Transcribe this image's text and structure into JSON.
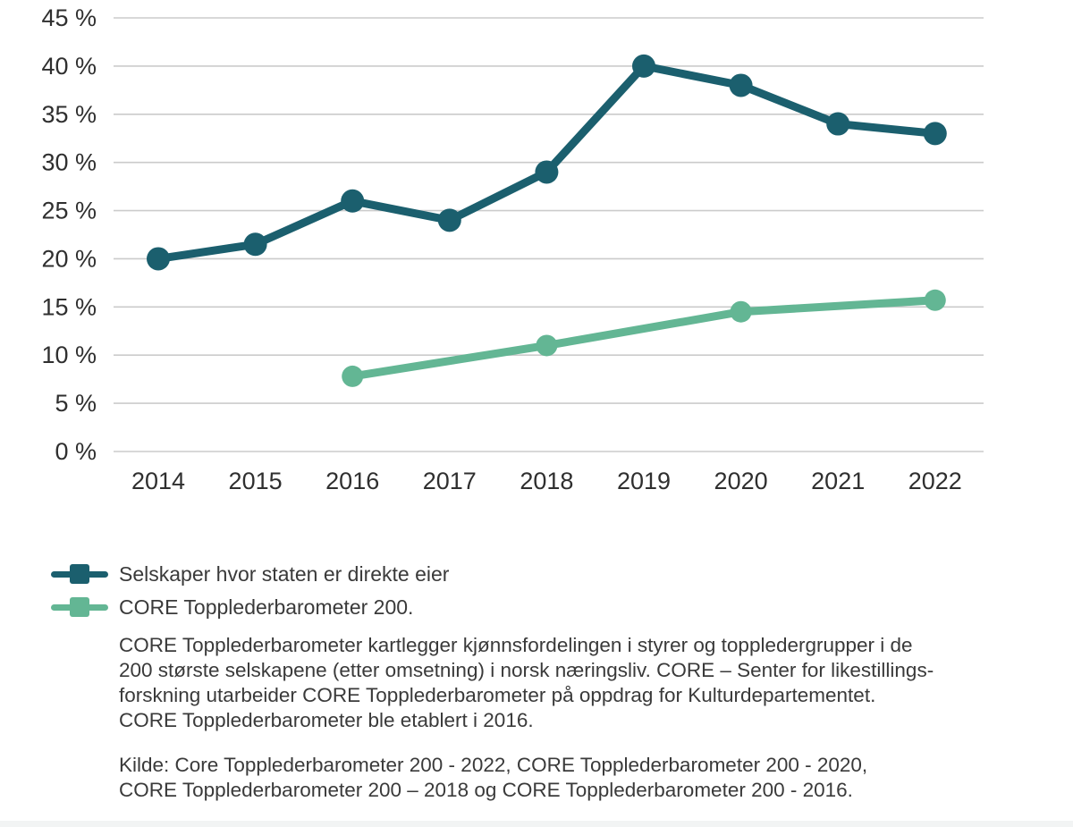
{
  "chart_data": {
    "type": "line",
    "x": [
      2014,
      2015,
      2016,
      2017,
      2018,
      2019,
      2020,
      2021,
      2022
    ],
    "series": [
      {
        "name": "Selskaper hvor staten er direkte eier",
        "color": "#1b5f6e",
        "values": [
          20,
          21.5,
          26,
          24,
          29,
          40,
          38,
          34,
          33
        ]
      },
      {
        "name": "CORE Topplederbarometer 200.",
        "color": "#63b694",
        "values": [
          null,
          null,
          7.8,
          null,
          11,
          null,
          14.5,
          null,
          15.7
        ]
      }
    ],
    "ylim": [
      0,
      45
    ],
    "ytick_step": 5,
    "ytick_labels": [
      "0 %",
      "5 %",
      "10 %",
      "15 %",
      "20 %",
      "25 %",
      "30 %",
      "35 %",
      "40 %",
      "45 %"
    ],
    "xtick_labels": [
      "2014",
      "2015",
      "2016",
      "2017",
      "2018",
      "2019",
      "2020",
      "2021",
      "2022"
    ],
    "xlabel": "",
    "ylabel": "",
    "title": "",
    "grid": true,
    "legend_position": "bottom-left"
  },
  "legend": {
    "items": [
      {
        "label": "Selskaper hvor staten er direkte eier",
        "color": "#1b5f6e"
      },
      {
        "label": "CORE Topplederbarometer 200.",
        "color": "#63b694"
      }
    ]
  },
  "notes": {
    "description": "CORE Topplederbarometer kartlegger kjønnsfordelingen i styrer og toppledergrupper i de\n200 største selskapene (etter omsetning) i norsk næringsliv. CORE – Senter for likestillings-\nforskning utarbeider CORE Topplederbarometer på oppdrag for Kulturdepartementet.\nCORE Topplederbarometer ble etablert i 2016.",
    "source": "Kilde: Core Topplederbarometer 200 - 2022, CORE Topplederbarometer 200 - 2020,\nCORE Topplederbarometer 200 – 2018 og CORE Topplederbarometer 200 - 2016."
  },
  "colors": {
    "grid": "#cbcbcb",
    "axis_text": "#2f2f2f",
    "body_text": "#3a3a3a",
    "bottom_strip": "#f2f4f4"
  }
}
